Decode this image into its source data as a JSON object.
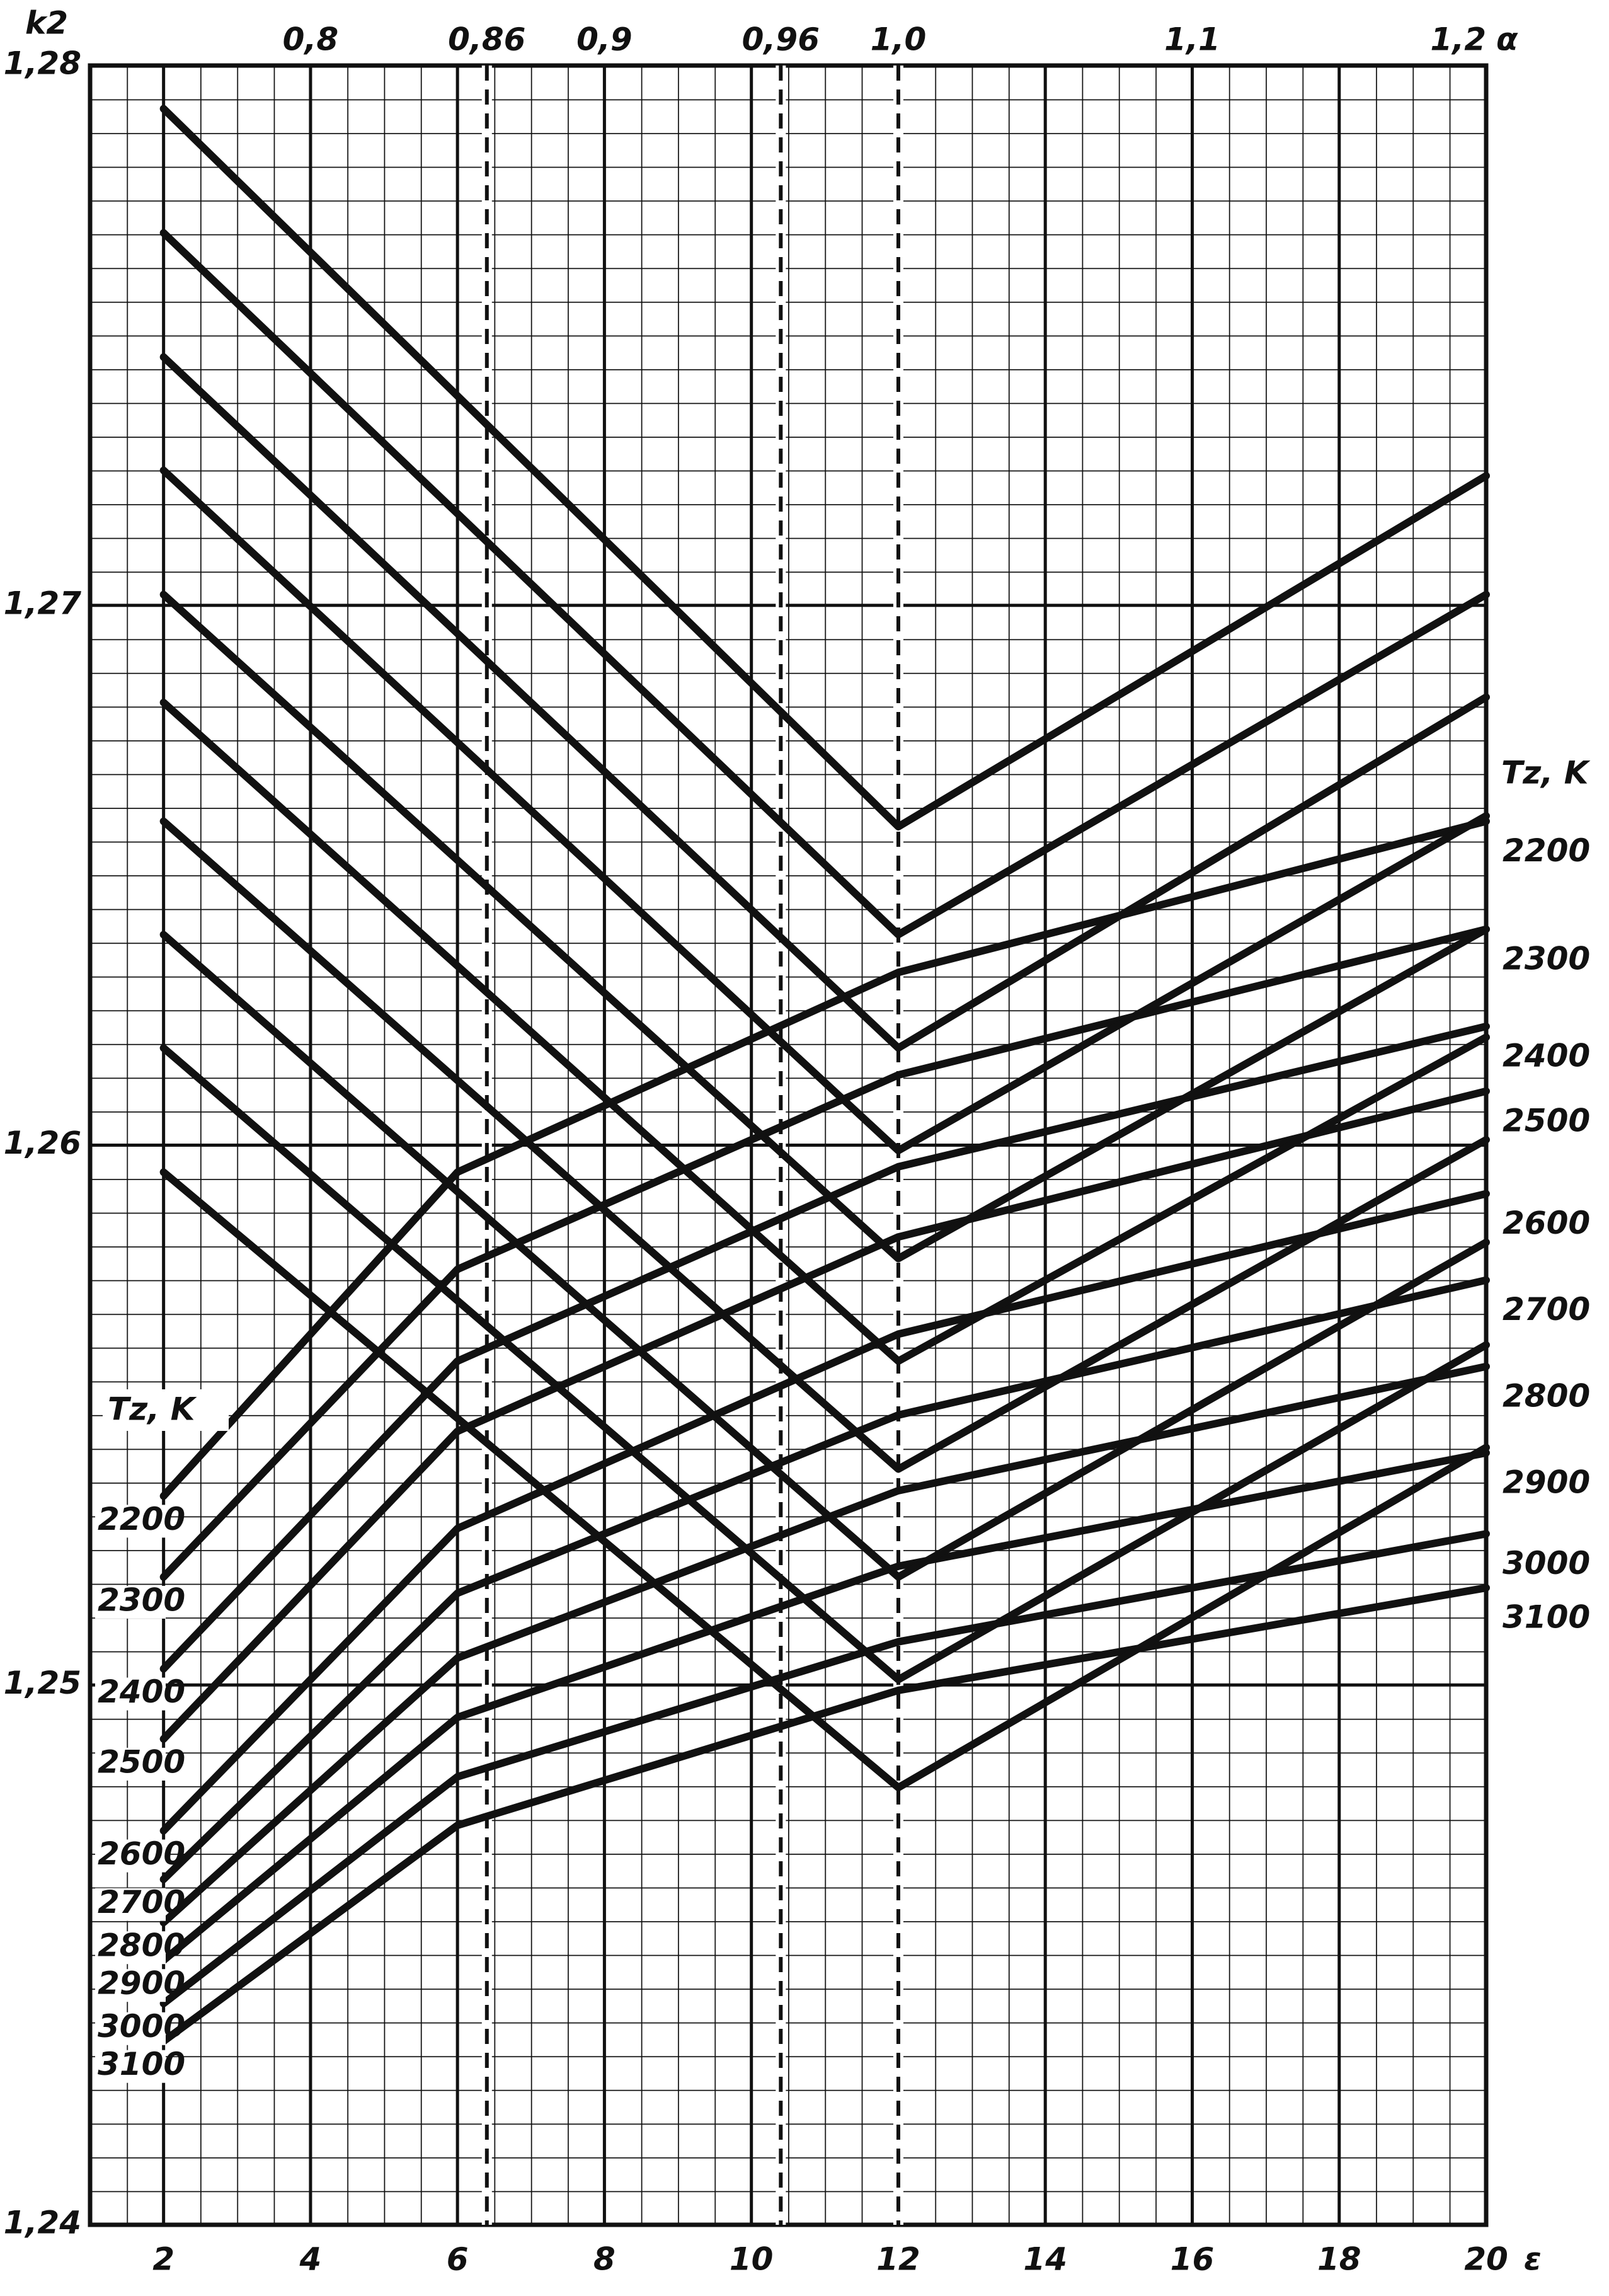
{
  "chart_data": {
    "type": "nomogram",
    "y_label": "k2",
    "x_label": "ε",
    "x2_label": "α",
    "legend_title": "Tz, K",
    "grid": true,
    "color": "#111111",
    "xlim": [
      1,
      20
    ],
    "xticks": [
      2,
      4,
      6,
      8,
      10,
      12,
      14,
      16,
      18,
      20
    ],
    "x2lim": [
      0.725,
      1.2
    ],
    "x2ticks": [
      {
        "value": 0.8,
        "label": "0,8"
      },
      {
        "value": 0.86,
        "label": "0,86",
        "dashed": true
      },
      {
        "value": 0.9,
        "label": "0,9"
      },
      {
        "value": 0.96,
        "label": "0,96",
        "dashed": true
      },
      {
        "value": 1.0,
        "label": "1,0",
        "dashed": true
      },
      {
        "value": 1.1,
        "label": "1,1"
      },
      {
        "value": 1.2,
        "label": "1,2"
      }
    ],
    "ylim": [
      1.24,
      1.28
    ],
    "yticks": [
      {
        "value": 1.24,
        "label": "1,24"
      },
      {
        "value": 1.25,
        "label": "1,25"
      },
      {
        "value": 1.26,
        "label": "1,26"
      },
      {
        "value": 1.27,
        "label": "1,27"
      },
      {
        "value": 1.28,
        "label": "1,28"
      }
    ],
    "x": [
      2,
      6,
      12,
      20
    ],
    "series": [
      {
        "name": "2200",
        "values": [
          1.2535,
          1.2595,
          1.2632,
          1.266
        ]
      },
      {
        "name": "2300",
        "values": [
          1.252,
          1.2577,
          1.2613,
          1.264
        ]
      },
      {
        "name": "2400",
        "values": [
          1.2503,
          1.256,
          1.2596,
          1.2622
        ]
      },
      {
        "name": "2500",
        "values": [
          1.249,
          1.2547,
          1.2583,
          1.261
        ]
      },
      {
        "name": "2600",
        "values": [
          1.2473,
          1.2529,
          1.2565,
          1.2591
        ]
      },
      {
        "name": "2700",
        "values": [
          1.2464,
          1.2517,
          1.255,
          1.2575
        ]
      },
      {
        "name": "2800",
        "values": [
          1.2456,
          1.2505,
          1.2536,
          1.2559
        ]
      },
      {
        "name": "2900",
        "values": [
          1.2449,
          1.2494,
          1.2522,
          1.2543
        ]
      },
      {
        "name": "3000",
        "values": [
          1.2441,
          1.2483,
          1.2508,
          1.2528
        ]
      },
      {
        "name": "3100",
        "values": [
          1.2434,
          1.2474,
          1.2499,
          1.2518
        ]
      }
    ],
    "x2": [
      0.75,
      1.0,
      1.2
    ],
    "series2": [
      {
        "name": "2200",
        "values": [
          1.2792,
          1.2659,
          1.2724
        ]
      },
      {
        "name": "2300",
        "values": [
          1.2769,
          1.2639,
          1.2702
        ]
      },
      {
        "name": "2400",
        "values": [
          1.2746,
          1.2618,
          1.2683
        ]
      },
      {
        "name": "2500",
        "values": [
          1.2725,
          1.2599,
          1.2661
        ]
      },
      {
        "name": "2600",
        "values": [
          1.2702,
          1.2579,
          1.264
        ]
      },
      {
        "name": "2700",
        "values": [
          1.2682,
          1.256,
          1.262
        ]
      },
      {
        "name": "2800",
        "values": [
          1.266,
          1.254,
          1.2601
        ]
      },
      {
        "name": "2900",
        "values": [
          1.2639,
          1.252,
          1.2582
        ]
      },
      {
        "name": "3000",
        "values": [
          1.2618,
          1.2501,
          1.2563
        ]
      },
      {
        "name": "3100",
        "values": [
          1.2595,
          1.2481,
          1.2544
        ]
      }
    ]
  }
}
